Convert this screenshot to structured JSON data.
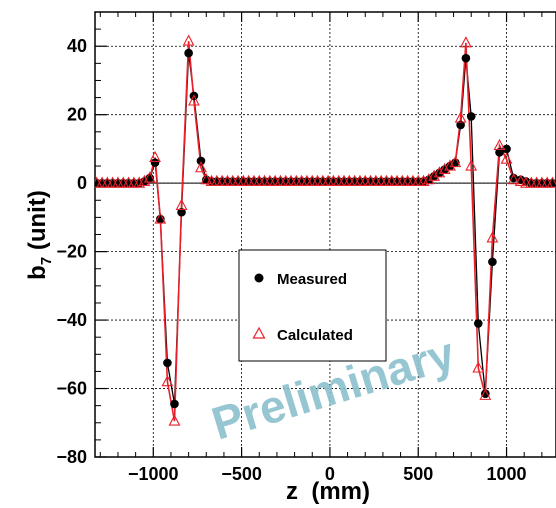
{
  "chart_data": {
    "type": "scatter",
    "xlabel": "z  (mm)",
    "ylabel": "b",
    "ylabel_sub": "7",
    "ylabel_unit": " (unit)",
    "xlim": [
      -1330,
      1280
    ],
    "ylim": [
      -80,
      50
    ],
    "xticks": [
      -1000,
      -500,
      0,
      500,
      1000
    ],
    "xtick_labels": [
      "−1000",
      "−500",
      "0",
      "500",
      "1000"
    ],
    "yticks": [
      -80,
      -60,
      -40,
      -20,
      0,
      20,
      40
    ],
    "ytick_labels": [
      "−80",
      "−60",
      "−40",
      "−20",
      "0",
      "20",
      "40"
    ],
    "grid": true,
    "legend_position": "center-left",
    "watermark": "Preliminary",
    "series": [
      {
        "name": "Measured",
        "marker": "filled-circle",
        "color": "#000000",
        "x": [
          -1320,
          -1290,
          -1260,
          -1230,
          -1200,
          -1170,
          -1140,
          -1110,
          -1080,
          -1050,
          -1020,
          -990,
          -960,
          -920,
          -880,
          -840,
          -800,
          -770,
          -730,
          -700,
          -670,
          -640,
          -610,
          -580,
          -550,
          -520,
          -490,
          -460,
          -430,
          -400,
          -370,
          -340,
          -310,
          -280,
          -250,
          -220,
          -190,
          -160,
          -130,
          -100,
          -70,
          -40,
          -10,
          20,
          50,
          80,
          110,
          140,
          170,
          200,
          230,
          260,
          290,
          320,
          350,
          380,
          410,
          440,
          470,
          500,
          530,
          560,
          590,
          620,
          650,
          680,
          710,
          740,
          770,
          800,
          840,
          880,
          920,
          960,
          1000,
          1040,
          1080,
          1110,
          1140,
          1170,
          1200,
          1230,
          1260
        ],
        "y": [
          0,
          0,
          0,
          0,
          0,
          0,
          0,
          0,
          0,
          0.5,
          1.5,
          6,
          -10.5,
          -52.5,
          -64.5,
          -8.5,
          38,
          25.5,
          6.5,
          1,
          0.5,
          0.5,
          0.5,
          0.5,
          0.5,
          0.5,
          0.5,
          0.5,
          0.5,
          0.5,
          0.5,
          0.5,
          0.5,
          0.5,
          0.5,
          0.5,
          0.5,
          0.5,
          0.5,
          0.5,
          0.5,
          0.5,
          0.5,
          0.5,
          0.5,
          0.5,
          0.5,
          0.5,
          0.5,
          0.5,
          0.5,
          0.5,
          0.5,
          0.5,
          0.5,
          0.5,
          0.5,
          0.5,
          0.5,
          0.5,
          0.5,
          1,
          2,
          3,
          4,
          5,
          6,
          17,
          36.5,
          19.5,
          -41,
          -61.5,
          -23,
          9,
          10,
          1.5,
          1,
          0.5,
          0,
          0,
          0,
          0,
          0
        ]
      },
      {
        "name": "Calculated",
        "marker": "open-triangle",
        "color": "#e8202a",
        "x": [
          -1320,
          -1290,
          -1260,
          -1230,
          -1200,
          -1170,
          -1140,
          -1110,
          -1080,
          -1050,
          -1020,
          -990,
          -960,
          -920,
          -880,
          -840,
          -800,
          -770,
          -730,
          -700,
          -670,
          -640,
          -610,
          -580,
          -550,
          -520,
          -490,
          -460,
          -430,
          -400,
          -370,
          -340,
          -310,
          -280,
          -250,
          -220,
          -190,
          -160,
          -130,
          -100,
          -70,
          -40,
          -10,
          20,
          50,
          80,
          110,
          140,
          170,
          200,
          230,
          260,
          290,
          320,
          350,
          380,
          410,
          440,
          470,
          500,
          530,
          560,
          590,
          620,
          650,
          680,
          710,
          740,
          770,
          800,
          840,
          880,
          920,
          960,
          1000,
          1040,
          1080,
          1110,
          1140,
          1170,
          1200,
          1230,
          1260
        ],
        "y": [
          0,
          0,
          0,
          0,
          0,
          0,
          0,
          0,
          0,
          0.5,
          1.5,
          7.5,
          -10.5,
          -58,
          -69.5,
          -6.5,
          41.5,
          24,
          4.5,
          1,
          0.5,
          0.5,
          0.5,
          0.5,
          0.5,
          0.5,
          0.5,
          0.5,
          0.5,
          0.5,
          0.5,
          0.5,
          0.5,
          0.5,
          0.5,
          0.5,
          0.5,
          0.5,
          0.5,
          0.5,
          0.5,
          0.5,
          0.5,
          0.5,
          0.5,
          0.5,
          0.5,
          0.5,
          0.5,
          0.5,
          0.5,
          0.5,
          0.5,
          0.5,
          0.5,
          0.5,
          0.5,
          0.5,
          0.5,
          0.5,
          0.5,
          1,
          2,
          3,
          4,
          5,
          6,
          19,
          41,
          5,
          -54,
          -62,
          -16,
          11,
          7,
          1,
          0.5,
          0,
          0,
          0,
          0,
          0,
          0
        ]
      }
    ]
  }
}
